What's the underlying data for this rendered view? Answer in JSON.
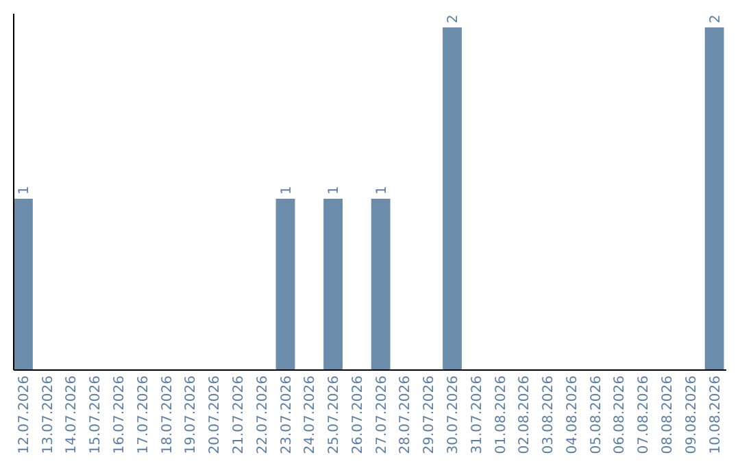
{
  "chart_data": {
    "type": "bar",
    "categories": [
      "12.07.2026",
      "13.07.2026",
      "14.07.2026",
      "15.07.2026",
      "16.07.2026",
      "17.07.2026",
      "18.07.2026",
      "19.07.2026",
      "20.07.2026",
      "21.07.2026",
      "22.07.2026",
      "23.07.2026",
      "24.07.2026",
      "25.07.2026",
      "26.07.2026",
      "27.07.2026",
      "28.07.2026",
      "29.07.2026",
      "30.07.2026",
      "31.07.2026",
      "01.08.2026",
      "02.08.2026",
      "03.08.2026",
      "04.08.2026",
      "05.08.2026",
      "06.08.2026",
      "07.08.2026",
      "08.08.2026",
      "09.08.2026",
      "10.08.2026"
    ],
    "values": [
      1,
      0,
      0,
      0,
      0,
      0,
      0,
      0,
      0,
      0,
      0,
      1,
      0,
      1,
      0,
      1,
      0,
      0,
      2,
      0,
      0,
      0,
      0,
      0,
      0,
      0,
      0,
      0,
      0,
      2
    ],
    "value_labels": [
      "1",
      null,
      null,
      null,
      null,
      null,
      null,
      null,
      null,
      null,
      null,
      "1",
      null,
      "1",
      null,
      "1",
      null,
      null,
      "2",
      null,
      null,
      null,
      null,
      null,
      null,
      null,
      null,
      null,
      null,
      "2"
    ],
    "color": "#6b8cab"
  }
}
